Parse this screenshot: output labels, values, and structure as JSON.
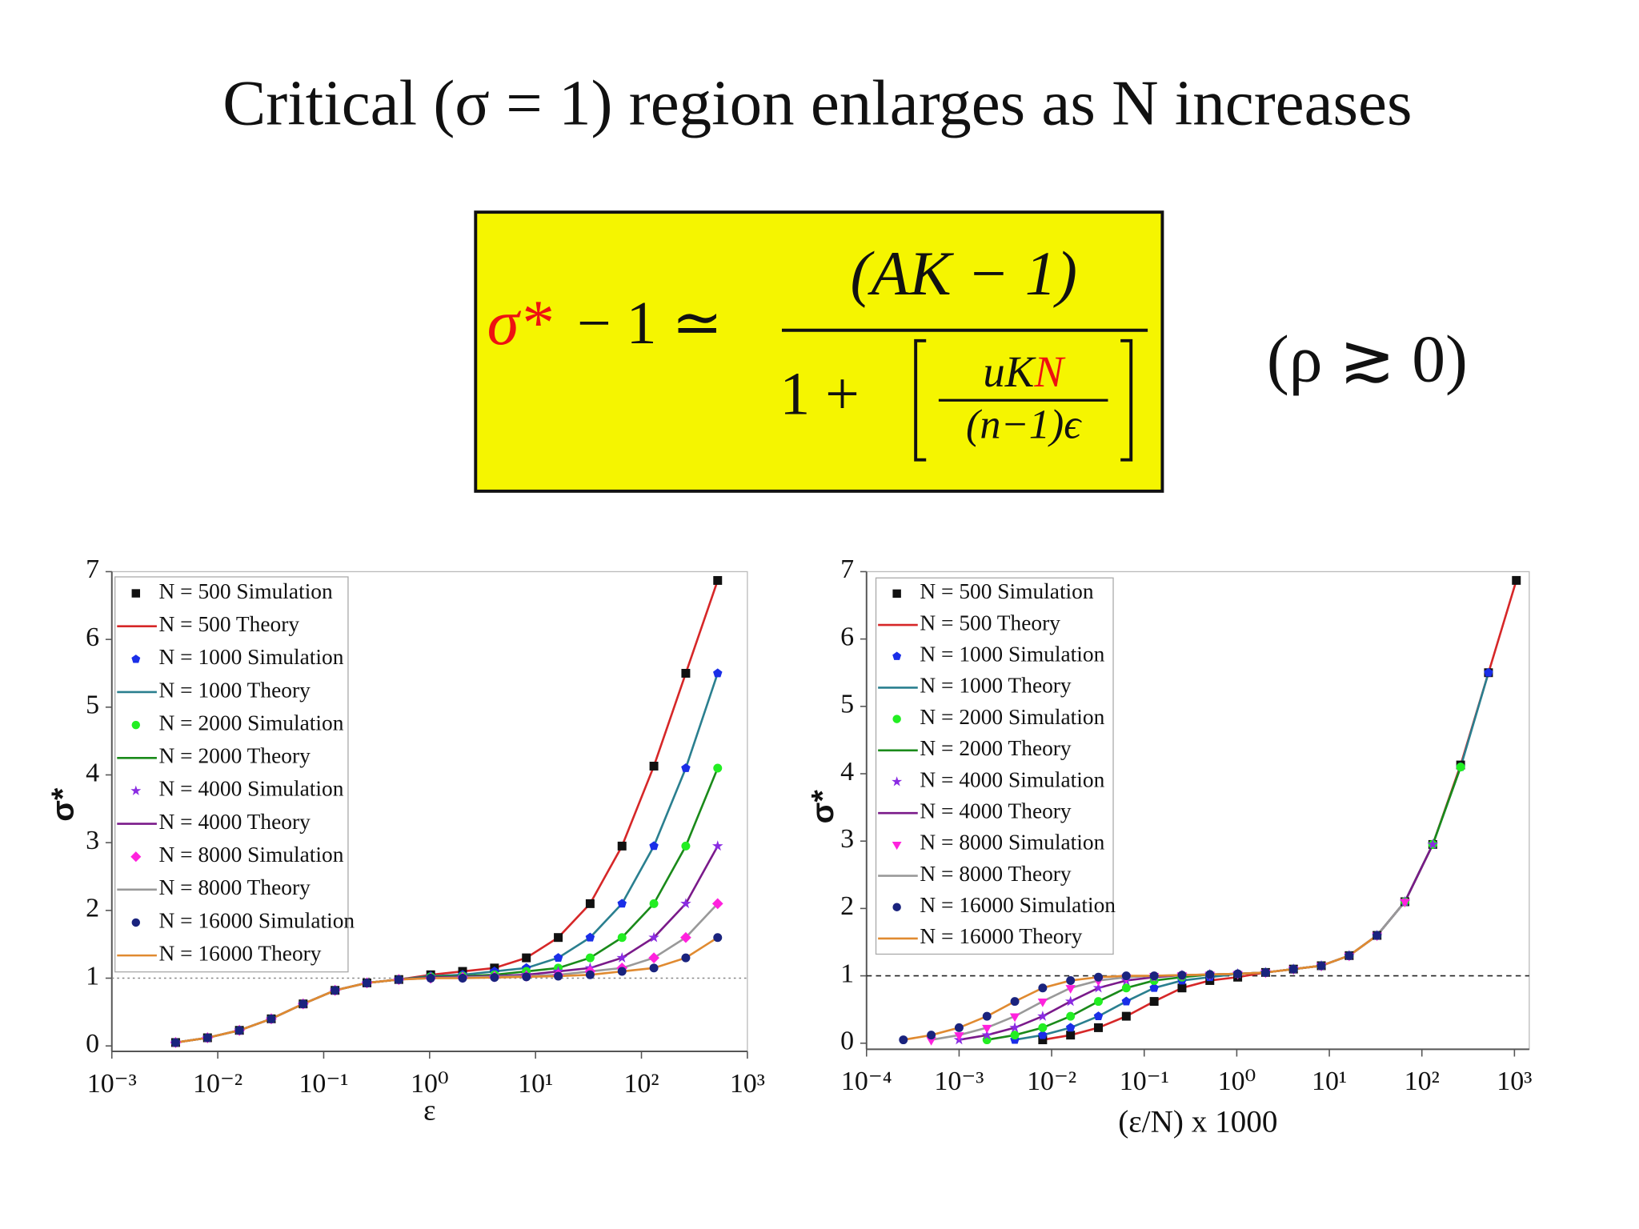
{
  "slide": {
    "title": "Critical (σ = 1) region enlarges as N increases",
    "formula": {
      "lhs_symbol": "σ*",
      "lhs_rest": "− 1 ≃",
      "numerator": "(AK − 1)",
      "denominator_lead": "1 +",
      "inner_numerator_lead": "uK",
      "inner_numerator_highlight": "N",
      "inner_denominator": "(n−1)ϵ",
      "condition": "(ρ ≳ 0)"
    }
  },
  "chart_data": [
    {
      "type": "line",
      "xlabel": "ε",
      "ylabel": "σ*",
      "log_x": true,
      "xlim": [
        0.001,
        1000
      ],
      "ylim": [
        -0.08,
        7
      ],
      "xticks": [
        {
          "value": 0.001,
          "label": "10⁻³"
        },
        {
          "value": 0.01,
          "label": "10⁻²"
        },
        {
          "value": 0.1,
          "label": "10⁻¹"
        },
        {
          "value": 1,
          "label": "10⁰"
        },
        {
          "value": 10,
          "label": "10¹"
        },
        {
          "value": 100,
          "label": "10²"
        },
        {
          "value": 1000,
          "label": "10³"
        }
      ],
      "yticks": [
        0,
        1,
        2,
        3,
        4,
        5,
        6,
        7
      ],
      "hline": 1,
      "hline_style": "dotted",
      "legend": "upper left",
      "x": [
        0.004,
        0.008,
        0.016,
        0.032,
        0.064,
        0.128,
        0.256,
        0.512,
        1.024,
        2.048,
        4.096,
        8.192,
        16.384,
        32.768,
        65.536,
        131.072,
        262.144,
        524.288
      ],
      "series": [
        {
          "name": "N = 500 Simulation",
          "style": "markers",
          "marker": "square",
          "color": "#111111",
          "values": [
            0.05,
            0.12,
            0.23,
            0.4,
            0.62,
            0.82,
            0.93,
            0.98,
            1.05,
            1.1,
            1.15,
            1.3,
            1.6,
            2.1,
            2.95,
            4.13,
            5.5,
            6.87
          ]
        },
        {
          "name": "N = 500 Theory",
          "style": "line",
          "color": "#d62728",
          "values": [
            0.05,
            0.12,
            0.23,
            0.4,
            0.62,
            0.82,
            0.93,
            0.98,
            1.05,
            1.1,
            1.15,
            1.3,
            1.6,
            2.1,
            2.95,
            4.13,
            5.5,
            6.87
          ]
        },
        {
          "name": "N = 1000 Simulation",
          "style": "markers",
          "marker": "pentagon",
          "color": "#1a2ee8",
          "values": [
            0.05,
            0.12,
            0.23,
            0.4,
            0.62,
            0.82,
            0.93,
            0.98,
            1.03,
            1.05,
            1.1,
            1.15,
            1.3,
            1.6,
            2.1,
            2.95,
            4.1,
            5.5
          ]
        },
        {
          "name": "N = 1000 Theory",
          "style": "line",
          "color": "#2a7f8f",
          "values": [
            0.05,
            0.12,
            0.23,
            0.4,
            0.62,
            0.82,
            0.93,
            0.98,
            1.03,
            1.05,
            1.1,
            1.15,
            1.3,
            1.6,
            2.1,
            2.95,
            4.1,
            5.5
          ]
        },
        {
          "name": "N = 2000 Simulation",
          "style": "markers",
          "marker": "circle",
          "color": "#22ee22",
          "values": [
            0.05,
            0.12,
            0.23,
            0.4,
            0.62,
            0.82,
            0.93,
            0.98,
            1.02,
            1.03,
            1.05,
            1.1,
            1.15,
            1.3,
            1.6,
            2.1,
            2.95,
            4.1
          ]
        },
        {
          "name": "N = 2000 Theory",
          "style": "line",
          "color": "#1a8a1a",
          "values": [
            0.05,
            0.12,
            0.23,
            0.4,
            0.62,
            0.82,
            0.93,
            0.98,
            1.02,
            1.03,
            1.05,
            1.1,
            1.15,
            1.3,
            1.6,
            2.1,
            2.95,
            4.1
          ]
        },
        {
          "name": "N = 4000 Simulation",
          "style": "markers",
          "marker": "star",
          "color": "#8a2be2",
          "values": [
            0.05,
            0.12,
            0.23,
            0.4,
            0.62,
            0.82,
            0.93,
            0.98,
            1.01,
            1.02,
            1.03,
            1.05,
            1.1,
            1.15,
            1.3,
            1.6,
            2.1,
            2.95
          ]
        },
        {
          "name": "N = 4000 Theory",
          "style": "line",
          "color": "#7a1a8a",
          "values": [
            0.05,
            0.12,
            0.23,
            0.4,
            0.62,
            0.82,
            0.93,
            0.98,
            1.01,
            1.02,
            1.03,
            1.05,
            1.1,
            1.15,
            1.3,
            1.6,
            2.1,
            2.95
          ]
        },
        {
          "name": "N = 8000 Simulation",
          "style": "markers",
          "marker": "diamond",
          "color": "#ff22dd",
          "values": [
            0.05,
            0.12,
            0.23,
            0.4,
            0.62,
            0.82,
            0.93,
            0.98,
            1.0,
            1.01,
            1.02,
            1.03,
            1.05,
            1.1,
            1.15,
            1.3,
            1.6,
            2.1
          ]
        },
        {
          "name": "N = 8000 Theory",
          "style": "line",
          "color": "#999999",
          "values": [
            0.05,
            0.12,
            0.23,
            0.4,
            0.62,
            0.82,
            0.93,
            0.98,
            1.0,
            1.01,
            1.02,
            1.03,
            1.05,
            1.1,
            1.15,
            1.3,
            1.6,
            2.1
          ]
        },
        {
          "name": "N = 16000 Simulation",
          "style": "markers",
          "marker": "circle",
          "color": "#1a237e",
          "values": [
            0.05,
            0.12,
            0.23,
            0.4,
            0.62,
            0.82,
            0.93,
            0.98,
            1.0,
            1.0,
            1.01,
            1.02,
            1.03,
            1.05,
            1.1,
            1.15,
            1.3,
            1.6
          ]
        },
        {
          "name": "N = 16000 Theory",
          "style": "line",
          "color": "#e08a30",
          "values": [
            0.05,
            0.12,
            0.23,
            0.4,
            0.62,
            0.82,
            0.93,
            0.98,
            1.0,
            1.0,
            1.01,
            1.02,
            1.03,
            1.05,
            1.1,
            1.15,
            1.3,
            1.6
          ]
        }
      ]
    },
    {
      "type": "line",
      "xlabel": "(ε/N) x 1000",
      "ylabel": "σ*",
      "log_x": true,
      "xlim": [
        0.0001,
        1445
      ],
      "ylim": [
        -0.09,
        7
      ],
      "xticks": [
        {
          "value": 0.0001,
          "label": "10⁻⁴"
        },
        {
          "value": 0.001,
          "label": "10⁻³"
        },
        {
          "value": 0.01,
          "label": "10⁻²"
        },
        {
          "value": 0.1,
          "label": "10⁻¹"
        },
        {
          "value": 1,
          "label": "10⁰"
        },
        {
          "value": 10,
          "label": "10¹"
        },
        {
          "value": 100,
          "label": "10²"
        },
        {
          "value": 1000,
          "label": "10³"
        }
      ],
      "yticks": [
        0,
        1,
        2,
        3,
        4,
        5,
        6,
        7
      ],
      "hline": 1,
      "hline_style": "dashed",
      "legend": "upper left",
      "series": [
        {
          "name": "N = 500 Simulation",
          "style": "markers",
          "marker": "square",
          "color": "#111111",
          "x": [
            0.008,
            0.016,
            0.032,
            0.064,
            0.128,
            0.256,
            0.512,
            1.024,
            2.048,
            4.096,
            8.192,
            16.384,
            32.768,
            65.536,
            131.072,
            262.144,
            524.288,
            1048.576
          ],
          "values": [
            0.05,
            0.12,
            0.23,
            0.4,
            0.62,
            0.82,
            0.93,
            0.98,
            1.05,
            1.1,
            1.15,
            1.3,
            1.6,
            2.1,
            2.95,
            4.13,
            5.5,
            6.87
          ]
        },
        {
          "name": "N = 500 Theory",
          "style": "line",
          "color": "#d62728",
          "x": [
            0.008,
            0.016,
            0.032,
            0.064,
            0.128,
            0.256,
            0.512,
            1.024,
            2.048,
            4.096,
            8.192,
            16.384,
            32.768,
            65.536,
            131.072,
            262.144,
            524.288,
            1048.576
          ],
          "values": [
            0.05,
            0.12,
            0.23,
            0.4,
            0.62,
            0.82,
            0.93,
            0.98,
            1.05,
            1.1,
            1.15,
            1.3,
            1.6,
            2.1,
            2.95,
            4.13,
            5.5,
            6.87
          ]
        },
        {
          "name": "N = 1000 Simulation",
          "style": "markers",
          "marker": "pentagon",
          "color": "#1a2ee8",
          "x": [
            0.004,
            0.008,
            0.016,
            0.032,
            0.064,
            0.128,
            0.256,
            0.512,
            1.024,
            2.048,
            4.096,
            8.192,
            16.384,
            32.768,
            65.536,
            131.072,
            262.144,
            524.288
          ],
          "values": [
            0.05,
            0.12,
            0.23,
            0.4,
            0.62,
            0.82,
            0.93,
            0.98,
            1.03,
            1.05,
            1.1,
            1.15,
            1.3,
            1.6,
            2.1,
            2.95,
            4.1,
            5.5
          ]
        },
        {
          "name": "N = 1000 Theory",
          "style": "line",
          "color": "#2a7f8f",
          "x": [
            0.004,
            0.008,
            0.016,
            0.032,
            0.064,
            0.128,
            0.256,
            0.512,
            1.024,
            2.048,
            4.096,
            8.192,
            16.384,
            32.768,
            65.536,
            131.072,
            262.144,
            524.288
          ],
          "values": [
            0.05,
            0.12,
            0.23,
            0.4,
            0.62,
            0.82,
            0.93,
            0.98,
            1.03,
            1.05,
            1.1,
            1.15,
            1.3,
            1.6,
            2.1,
            2.95,
            4.1,
            5.5
          ]
        },
        {
          "name": "N = 2000 Simulation",
          "style": "markers",
          "marker": "circle",
          "color": "#22ee22",
          "x": [
            0.002,
            0.004,
            0.008,
            0.016,
            0.032,
            0.064,
            0.128,
            0.256,
            0.512,
            1.024,
            2.048,
            4.096,
            8.192,
            16.384,
            32.768,
            65.536,
            131.072,
            262.144
          ],
          "values": [
            0.05,
            0.12,
            0.23,
            0.4,
            0.62,
            0.82,
            0.93,
            0.98,
            1.02,
            1.03,
            1.05,
            1.1,
            1.15,
            1.3,
            1.6,
            2.1,
            2.95,
            4.1
          ]
        },
        {
          "name": "N = 2000 Theory",
          "style": "line",
          "color": "#1a8a1a",
          "x": [
            0.002,
            0.004,
            0.008,
            0.016,
            0.032,
            0.064,
            0.128,
            0.256,
            0.512,
            1.024,
            2.048,
            4.096,
            8.192,
            16.384,
            32.768,
            65.536,
            131.072,
            262.144
          ],
          "values": [
            0.05,
            0.12,
            0.23,
            0.4,
            0.62,
            0.82,
            0.93,
            0.98,
            1.02,
            1.03,
            1.05,
            1.1,
            1.15,
            1.3,
            1.6,
            2.1,
            2.95,
            4.1
          ]
        },
        {
          "name": "N = 4000 Simulation",
          "style": "markers",
          "marker": "star",
          "color": "#8a2be2",
          "x": [
            0.001,
            0.002,
            0.004,
            0.008,
            0.016,
            0.032,
            0.064,
            0.128,
            0.256,
            0.512,
            1.024,
            2.048,
            4.096,
            8.192,
            16.384,
            32.768,
            65.536,
            131.072
          ],
          "values": [
            0.05,
            0.12,
            0.23,
            0.4,
            0.62,
            0.82,
            0.93,
            0.98,
            1.01,
            1.02,
            1.03,
            1.05,
            1.1,
            1.15,
            1.3,
            1.6,
            2.1,
            2.95
          ]
        },
        {
          "name": "N = 4000 Theory",
          "style": "line",
          "color": "#7a1a8a",
          "x": [
            0.001,
            0.002,
            0.004,
            0.008,
            0.016,
            0.032,
            0.064,
            0.128,
            0.256,
            0.512,
            1.024,
            2.048,
            4.096,
            8.192,
            16.384,
            32.768,
            65.536,
            131.072
          ],
          "values": [
            0.05,
            0.12,
            0.23,
            0.4,
            0.62,
            0.82,
            0.93,
            0.98,
            1.01,
            1.02,
            1.03,
            1.05,
            1.1,
            1.15,
            1.3,
            1.6,
            2.1,
            2.95
          ]
        },
        {
          "name": "N = 8000 Simulation",
          "style": "markers",
          "marker": "triangle-down",
          "color": "#ff22dd",
          "x": [
            0.0005,
            0.001,
            0.002,
            0.004,
            0.008,
            0.016,
            0.032,
            0.064,
            0.128,
            0.256,
            0.512,
            1.024,
            2.048,
            4.096,
            8.192,
            16.384,
            32.768,
            65.536
          ],
          "values": [
            0.05,
            0.12,
            0.23,
            0.4,
            0.62,
            0.82,
            0.93,
            0.98,
            1.0,
            1.01,
            1.02,
            1.03,
            1.05,
            1.1,
            1.15,
            1.3,
            1.6,
            2.1
          ]
        },
        {
          "name": "N = 8000 Theory",
          "style": "line",
          "color": "#999999",
          "x": [
            0.0005,
            0.001,
            0.002,
            0.004,
            0.008,
            0.016,
            0.032,
            0.064,
            0.128,
            0.256,
            0.512,
            1.024,
            2.048,
            4.096,
            8.192,
            16.384,
            32.768,
            65.536
          ],
          "values": [
            0.05,
            0.12,
            0.23,
            0.4,
            0.62,
            0.82,
            0.93,
            0.98,
            1.0,
            1.01,
            1.02,
            1.03,
            1.05,
            1.1,
            1.15,
            1.3,
            1.6,
            2.1
          ]
        },
        {
          "name": "N = 16000 Simulation",
          "style": "markers",
          "marker": "circle",
          "color": "#1a237e",
          "x": [
            0.00025,
            0.0005,
            0.001,
            0.002,
            0.004,
            0.008,
            0.016,
            0.032,
            0.064,
            0.128,
            0.256,
            0.512,
            1.024,
            2.048,
            4.096,
            8.192,
            16.384,
            32.768
          ],
          "values": [
            0.05,
            0.12,
            0.23,
            0.4,
            0.62,
            0.82,
            0.93,
            0.98,
            1.0,
            1.0,
            1.01,
            1.02,
            1.03,
            1.05,
            1.1,
            1.15,
            1.3,
            1.6
          ]
        },
        {
          "name": "N = 16000 Theory",
          "style": "line",
          "color": "#e08a30",
          "x": [
            0.00025,
            0.0005,
            0.001,
            0.002,
            0.004,
            0.008,
            0.016,
            0.032,
            0.064,
            0.128,
            0.256,
            0.512,
            1.024,
            2.048,
            4.096,
            8.192,
            16.384,
            32.768
          ],
          "values": [
            0.05,
            0.12,
            0.23,
            0.4,
            0.62,
            0.82,
            0.93,
            0.98,
            1.0,
            1.0,
            1.01,
            1.02,
            1.03,
            1.05,
            1.1,
            1.15,
            1.3,
            1.6
          ]
        }
      ]
    }
  ]
}
